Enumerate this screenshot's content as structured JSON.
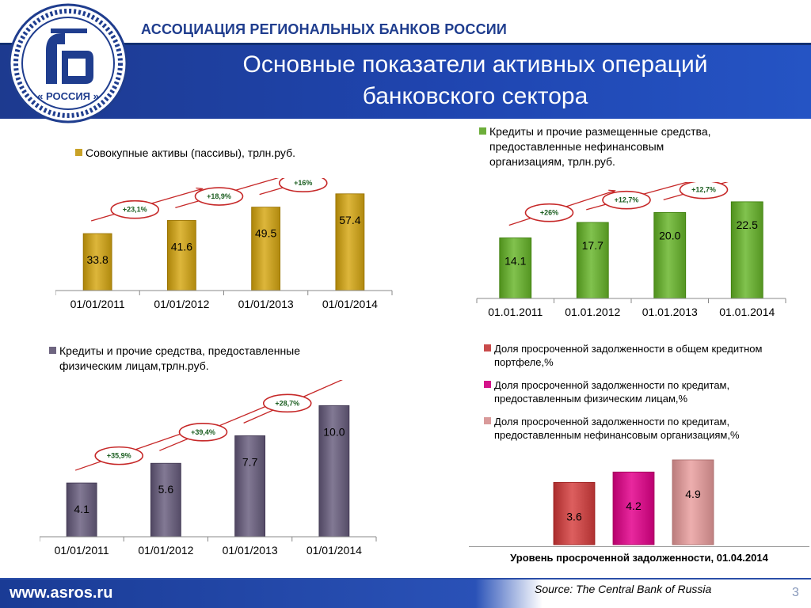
{
  "header": {
    "org_name": "АССОЦИАЦИЯ РЕГИОНАЛЬНЫХ БАНКОВ РОССИИ",
    "title_line1": "Основные показатели активных операций",
    "title_line2": "банковского сектора",
    "logo_text": "« РОССИЯ »"
  },
  "charts": {
    "assets": {
      "legend": "Совокупные активы (пассивы), трлн.руб.",
      "color": "#c9a227"
    },
    "corp_loans": {
      "legend_line1": "Кредиты и прочие размещенные средства,",
      "legend_line2": "предоставленные нефинансовым",
      "legend_line3": "организациям, трлн.руб.",
      "color": "#6dae3a"
    },
    "retail_loans": {
      "legend_line1": "Кредиты и прочие средства, предоставленные",
      "legend_line2": "физическим лицам,трлн.руб.",
      "color": "#6e6580"
    },
    "overdue": {
      "legend1_line1": "Доля просроченной задолженности в общем кредитном",
      "legend1_line2": "портфеле,%",
      "legend2_line1": "Доля просроченной задолженности по кредитам,",
      "legend2_line2": "предоставленным физическим лицам,%",
      "legend3_line1": "Доля просроченной задолженности по кредитам,",
      "legend3_line2": "предоставленным нефинансовым организациям,%",
      "caption": "Уровень просроченной задолженности, 01.04.2014",
      "colors": [
        "#c94b4b",
        "#d4148a",
        "#d99a9a"
      ]
    }
  },
  "chart_data": [
    {
      "type": "bar",
      "title": "Совокупные активы (пассивы), трлн.руб.",
      "categories": [
        "01/01/2011",
        "01/01/2012",
        "01/01/2013",
        "01/01/2014"
      ],
      "values": [
        33.8,
        41.6,
        49.5,
        57.4
      ],
      "value_labels": [
        "33.8",
        "41.6",
        "49.5",
        "57.4"
      ],
      "growth": [
        "+23,1%",
        "+18,9%",
        "+16%"
      ],
      "ylim": [
        0,
        62
      ]
    },
    {
      "type": "bar",
      "title": "Кредиты и прочие размещенные средства, предоставленные нефинансовым организациям, трлн.руб.",
      "categories": [
        "01.01.2011",
        "01.01.2012",
        "01.01.2013",
        "01.01.2014"
      ],
      "values": [
        14.1,
        17.7,
        20.0,
        22.5
      ],
      "value_labels": [
        "14.1",
        "17.7",
        "20.0",
        "22.5"
      ],
      "growth": [
        "+26%",
        "+12,7%",
        "+12,7%"
      ],
      "ylim": [
        0,
        24.5
      ]
    },
    {
      "type": "bar",
      "title": "Кредиты и прочие средства, предоставленные физическим лицам,трлн.руб.",
      "categories": [
        "01/01/2011",
        "01/01/2012",
        "01/01/2013",
        "01/01/2014"
      ],
      "values": [
        4.1,
        5.6,
        7.7,
        10.0
      ],
      "value_labels": [
        "4.1",
        "5.6",
        "7.7",
        "10.0"
      ],
      "growth": [
        "+35,9%",
        "+39,4%",
        "+28,7%"
      ],
      "ylim": [
        0,
        10.5
      ]
    },
    {
      "type": "bar",
      "title": "Уровень просроченной задолженности, 01.04.2014",
      "categories": [
        "Доля просроченной задолженности в общем кредитном портфеле,%",
        "Доля просроченной задолженности по кредитам, предоставленным физическим лицам,%",
        "Доля просроченной задолженности по кредитам, предоставленным нефинансовым организациям,%"
      ],
      "values": [
        3.6,
        4.2,
        4.9
      ],
      "value_labels": [
        "3.6",
        "4.2",
        "4.9"
      ],
      "ylim": [
        0,
        5.4
      ]
    }
  ],
  "footer": {
    "website": "www.asros.ru",
    "source": "Source: The Central Bank of Russia",
    "page_number": "3"
  }
}
